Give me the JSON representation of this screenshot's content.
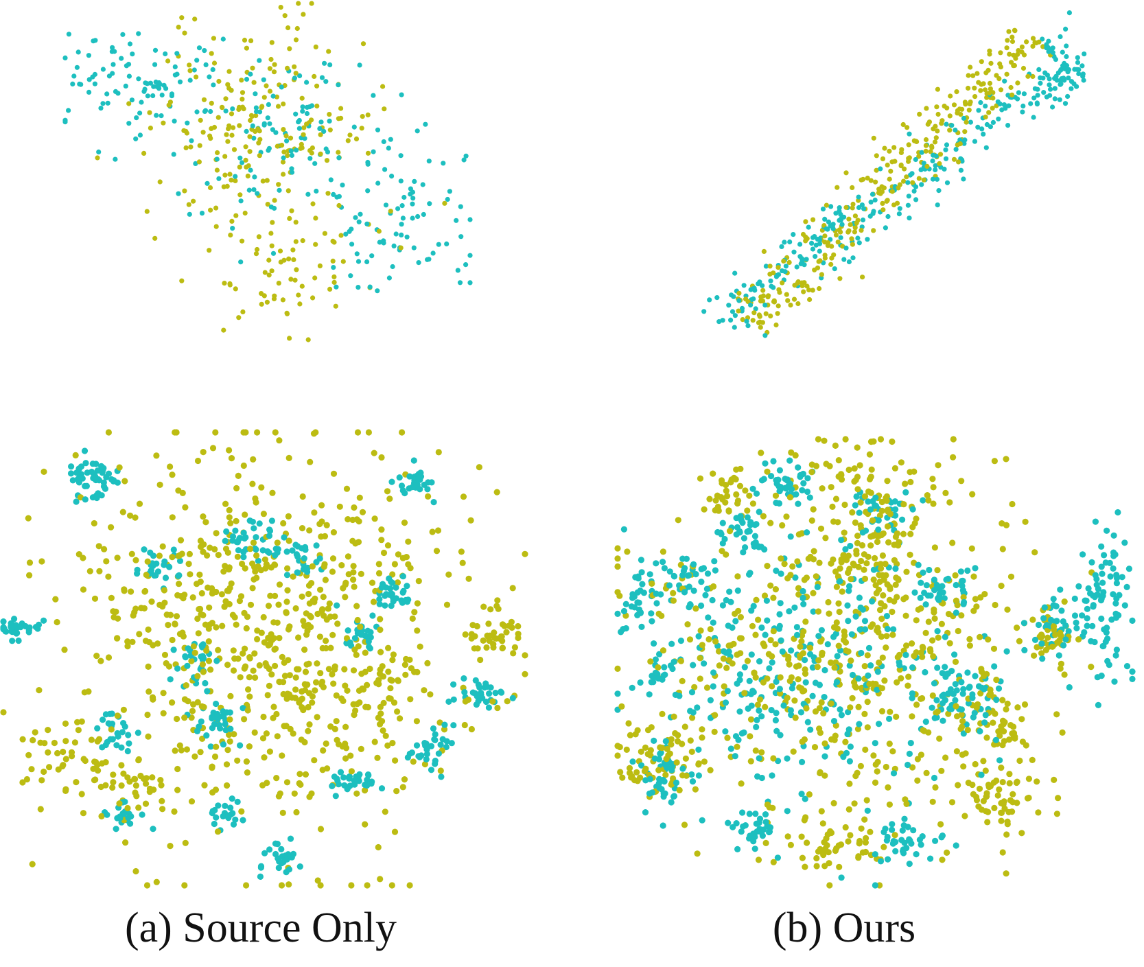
{
  "colors": {
    "cyan": "#1dbfbf",
    "olive": "#bcbc12"
  },
  "captions": {
    "a": "(a) Source Only",
    "b": "(b) Ours"
  },
  "chart_data": [
    {
      "type": "scatter",
      "panel": "a",
      "row": "top",
      "title": "",
      "xlabel": "",
      "ylabel": "",
      "xlim": [
        0,
        100
      ],
      "ylim": [
        0,
        100
      ],
      "grid": false,
      "axes_visible": false,
      "series": [
        {
          "color": "cyan",
          "clusters": [
            {
              "x": 18,
              "y": 76,
              "sx": 10,
              "sy": 8,
              "n": 95
            },
            {
              "x": 52,
              "y": 60,
              "sx": 12,
              "sy": 13,
              "n": 105
            },
            {
              "x": 82,
              "y": 34,
              "sx": 9,
              "sy": 12,
              "n": 85
            }
          ]
        },
        {
          "color": "olive",
          "clusters": [
            {
              "x": 50,
              "y": 64,
              "sx": 14,
              "sy": 17,
              "n": 210
            },
            {
              "x": 55,
              "y": 18,
              "sx": 11,
              "sy": 10,
              "n": 60
            }
          ]
        }
      ]
    },
    {
      "type": "scatter",
      "panel": "b",
      "row": "top",
      "title": "",
      "xlabel": "",
      "ylabel": "",
      "xlim": [
        0,
        100
      ],
      "ylim": [
        0,
        100
      ],
      "grid": false,
      "axes_visible": false,
      "series": [
        {
          "color": "cyan",
          "line": {
            "x0": 6,
            "y0": 8,
            "x1": 94,
            "y1": 86,
            "spread": 4,
            "shift": -3.5,
            "n": 260
          },
          "clusters": [
            {
              "x": 93,
              "y": 83,
              "sx": 3,
              "sy": 7,
              "n": 35
            }
          ]
        },
        {
          "color": "olive",
          "line": {
            "x0": 18,
            "y0": 3,
            "x1": 88,
            "y1": 88,
            "spread": 4,
            "shift": 2.5,
            "n": 300
          }
        }
      ]
    },
    {
      "type": "scatter",
      "panel": "a",
      "row": "bottom",
      "title": "",
      "xlabel": "",
      "ylabel": "",
      "xlim": [
        0,
        100
      ],
      "ylim": [
        0,
        100
      ],
      "grid": false,
      "axes_visible": false,
      "series": [
        {
          "color": "olive",
          "clusters": [
            {
              "x": 50,
              "y": 56,
              "sx": 19,
              "sy": 21,
              "n": 720
            },
            {
              "x": 12,
              "y": 28,
              "sx": 5,
              "sy": 5,
              "n": 45
            },
            {
              "x": 95,
              "y": 55,
              "sx": 3,
              "sy": 3,
              "n": 40
            },
            {
              "x": 72,
              "y": 43,
              "sx": 5,
              "sy": 4,
              "n": 35
            },
            {
              "x": 24,
              "y": 22,
              "sx": 3,
              "sy": 4,
              "n": 25
            }
          ]
        },
        {
          "color": "cyan",
          "clusters": [
            {
              "x": 17,
              "y": 90,
              "sx": 2.5,
              "sy": 2.2,
              "n": 55
            },
            {
              "x": 3,
              "y": 57,
              "sx": 2.5,
              "sy": 1.2,
              "n": 35
            },
            {
              "x": 79,
              "y": 89,
              "sx": 1.8,
              "sy": 1.8,
              "n": 30
            },
            {
              "x": 49,
              "y": 77,
              "sx": 3.5,
              "sy": 2,
              "n": 35
            },
            {
              "x": 56,
              "y": 72,
              "sx": 2.5,
              "sy": 2,
              "n": 25
            },
            {
              "x": 29,
              "y": 70,
              "sx": 2,
              "sy": 2,
              "n": 25
            },
            {
              "x": 75,
              "y": 64,
              "sx": 2,
              "sy": 2.2,
              "n": 30
            },
            {
              "x": 69,
              "y": 56,
              "sx": 2,
              "sy": 2.5,
              "n": 25
            },
            {
              "x": 37,
              "y": 49,
              "sx": 2,
              "sy": 3,
              "n": 30
            },
            {
              "x": 41,
              "y": 36,
              "sx": 2.5,
              "sy": 2.5,
              "n": 30
            },
            {
              "x": 22,
              "y": 33,
              "sx": 2,
              "sy": 2,
              "n": 25
            },
            {
              "x": 66,
              "y": 23,
              "sx": 3.5,
              "sy": 1.5,
              "n": 30
            },
            {
              "x": 82,
              "y": 30,
              "sx": 2,
              "sy": 2.5,
              "n": 30
            },
            {
              "x": 91,
              "y": 42,
              "sx": 2.5,
              "sy": 1.5,
              "n": 30
            },
            {
              "x": 23,
              "y": 15,
              "sx": 2,
              "sy": 2,
              "n": 20
            },
            {
              "x": 42,
              "y": 15,
              "sx": 2,
              "sy": 2,
              "n": 20
            },
            {
              "x": 53,
              "y": 6,
              "sx": 2.5,
              "sy": 2,
              "n": 25
            }
          ]
        }
      ]
    },
    {
      "type": "scatter",
      "panel": "b",
      "row": "bottom",
      "title": "",
      "xlabel": "",
      "ylabel": "",
      "xlim": [
        0,
        100
      ],
      "ylim": [
        0,
        100
      ],
      "grid": false,
      "axes_visible": false,
      "series": [
        {
          "color": "olive",
          "clusters": [
            {
              "x": 43,
              "y": 50,
              "sx": 19,
              "sy": 19,
              "n": 520
            },
            {
              "x": 49,
              "y": 83,
              "sx": 8,
              "sy": 10,
              "n": 140
            },
            {
              "x": 21,
              "y": 88,
              "sx": 3,
              "sy": 3,
              "n": 35
            },
            {
              "x": 8,
              "y": 28,
              "sx": 5,
              "sy": 4,
              "n": 60
            },
            {
              "x": 73,
              "y": 20,
              "sx": 4,
              "sy": 4,
              "n": 55
            },
            {
              "x": 73,
              "y": 37,
              "sx": 4,
              "sy": 5,
              "n": 50
            },
            {
              "x": 84,
              "y": 56,
              "sx": 3,
              "sy": 3,
              "n": 40
            },
            {
              "x": 42,
              "y": 9,
              "sx": 5,
              "sy": 3,
              "n": 45
            }
          ]
        },
        {
          "color": "cyan",
          "clusters": [
            {
              "x": 37,
              "y": 48,
              "sx": 15,
              "sy": 14,
              "n": 270
            },
            {
              "x": 32,
              "y": 90,
              "sx": 3,
              "sy": 3,
              "n": 40
            },
            {
              "x": 25,
              "y": 80,
              "sx": 3,
              "sy": 3,
              "n": 35
            },
            {
              "x": 13,
              "y": 69,
              "sx": 3,
              "sy": 2.5,
              "n": 40
            },
            {
              "x": 4,
              "y": 64,
              "sx": 2,
              "sy": 3,
              "n": 30
            },
            {
              "x": 8,
              "y": 47,
              "sx": 2,
              "sy": 2,
              "n": 20
            },
            {
              "x": 95,
              "y": 64,
              "sx": 3,
              "sy": 9,
              "n": 80
            },
            {
              "x": 85,
              "y": 58,
              "sx": 3,
              "sy": 4,
              "n": 40
            },
            {
              "x": 68,
              "y": 42,
              "sx": 4,
              "sy": 5,
              "n": 60
            },
            {
              "x": 64,
              "y": 67,
              "sx": 3,
              "sy": 3,
              "n": 35
            },
            {
              "x": 10,
              "y": 24,
              "sx": 3,
              "sy": 4,
              "n": 45
            },
            {
              "x": 27,
              "y": 13,
              "sx": 3,
              "sy": 3,
              "n": 35
            },
            {
              "x": 56,
              "y": 11,
              "sx": 4,
              "sy": 3,
              "n": 40
            },
            {
              "x": 52,
              "y": 85,
              "sx": 3,
              "sy": 3,
              "n": 30
            }
          ]
        }
      ]
    }
  ]
}
